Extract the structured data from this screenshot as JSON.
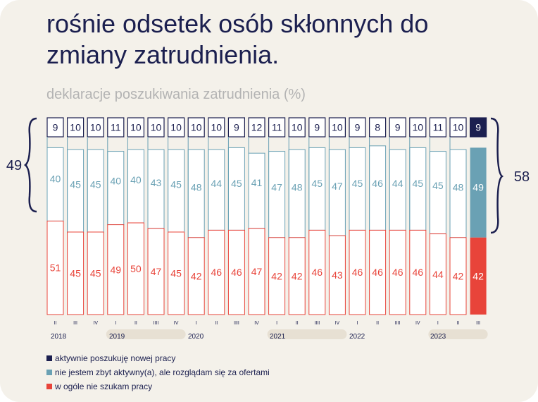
{
  "title": "rośnie odsetek osób skłonnych do zmiany zatrudnienia.",
  "subtitle": "deklaracje poszukiwania zatrudnienia (%)",
  "colors": {
    "background": "#f4f1ea",
    "active": "#1b1f4f",
    "browsing": "#6aa1b4",
    "not_searching": "#e8443a",
    "frame": "#1b1f4f",
    "year_band": "#e7e0d3"
  },
  "chart_data": {
    "type": "bar",
    "stacked": true,
    "categories": [
      "2018 II",
      "2018 III",
      "2018 IV",
      "2019 I",
      "2019 II",
      "2019 III",
      "2019 IV",
      "2020 I",
      "2020 II",
      "2020 III",
      "2020 IV",
      "2021 I",
      "2021 II",
      "2021 III",
      "2021 IV",
      "2022 I",
      "2022 II",
      "2022 III",
      "2022 IV",
      "2023 I",
      "2023 II",
      "2023 III"
    ],
    "quarter_labels": [
      "II",
      "III",
      "IV",
      "I",
      "II",
      "IIII",
      "IV",
      "I",
      "II",
      "IIII",
      "IV",
      "I",
      "II",
      "IIII",
      "IV",
      "I",
      "II",
      "IIII",
      "IV",
      "I",
      "II",
      "III"
    ],
    "years": [
      {
        "label": "2018",
        "start": 0,
        "end": 2,
        "band": false
      },
      {
        "label": "2019",
        "start": 3,
        "end": 6,
        "band": true
      },
      {
        "label": "2020",
        "start": 7,
        "end": 10,
        "band": false
      },
      {
        "label": "2021",
        "start": 11,
        "end": 14,
        "band": true
      },
      {
        "label": "2022",
        "start": 15,
        "end": 18,
        "band": false
      },
      {
        "label": "2023",
        "start": 19,
        "end": 21,
        "band": true
      }
    ],
    "series": [
      {
        "name": "aktywnie poszukuję nowej pracy",
        "key": "active",
        "values": [
          9,
          10,
          10,
          11,
          10,
          10,
          10,
          10,
          10,
          9,
          12,
          11,
          10,
          9,
          10,
          9,
          8,
          9,
          10,
          11,
          10,
          9
        ]
      },
      {
        "name": "nie jestem zbyt aktywny(a), ale rozglądam się za ofertami",
        "key": "browsing",
        "values": [
          40,
          45,
          45,
          40,
          40,
          43,
          45,
          48,
          44,
          45,
          41,
          47,
          48,
          45,
          47,
          45,
          46,
          44,
          45,
          45,
          48,
          49
        ]
      },
      {
        "name": "w ogóle nie szukam pracy",
        "key": "not_searching",
        "values": [
          51,
          45,
          45,
          49,
          50,
          47,
          45,
          42,
          46,
          46,
          47,
          42,
          42,
          46,
          43,
          46,
          46,
          46,
          46,
          44,
          42,
          42
        ]
      }
    ],
    "highlight_index": 21,
    "annotations": {
      "left_total": "49",
      "right_total": "58"
    },
    "ylim": [
      0,
      100
    ]
  }
}
